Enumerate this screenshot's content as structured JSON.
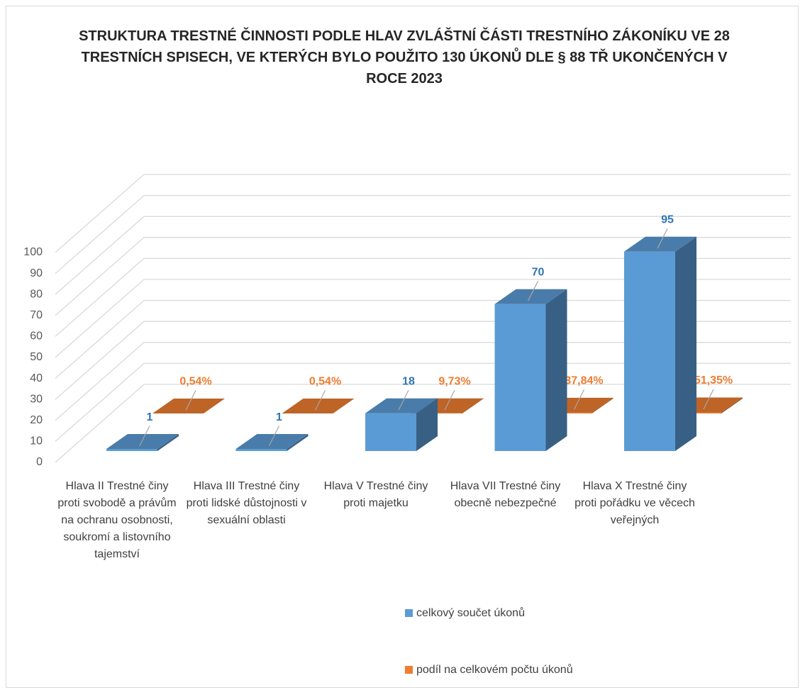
{
  "chart_data": {
    "type": "bar3d",
    "title": "STRUKTURA TRESTNÉ ČINNOSTI PODLE HLAV ZVLÁŠTNÍ ČÁSTI TRESTNÍHO ZÁKONÍKU VE 28 TRESTNÍCH SPISECH, VE KTERÝCH BYLO POUŽITO 130 ÚKONŮ DLE § 88 TŘ UKONČENÝCH V ROCE 2023",
    "categories": [
      "Hlava II Trestné činy proti svobodě a právům na ochranu osobnosti, soukromí a listovního tajemství",
      "Hlava III Trestné činy proti lidské důstojnosti v sexuální oblasti",
      "Hlava V Trestné činy proti majetku",
      "Hlava VII Trestné činy obecně nebezpečné",
      "Hlava X Trestné činy proti pořádku ve věcech veřejných"
    ],
    "series": [
      {
        "name": "celkový součet úkonů",
        "color": "#5b9bd5",
        "values": [
          1,
          1,
          18,
          70,
          95
        ]
      },
      {
        "name": "podíl na celkovém počtu úkonů",
        "color": "#ed7d31",
        "values": [
          0.0054,
          0.0054,
          0.0973,
          0.3784,
          0.5135
        ],
        "value_labels": [
          "0,54%",
          "0,54%",
          "9,73%",
          "37,84%",
          "51,35%"
        ]
      }
    ],
    "ylim": [
      0,
      100
    ],
    "yticks": [
      0,
      10,
      20,
      30,
      40,
      50,
      60,
      70,
      80,
      90,
      100
    ],
    "grid": true
  }
}
